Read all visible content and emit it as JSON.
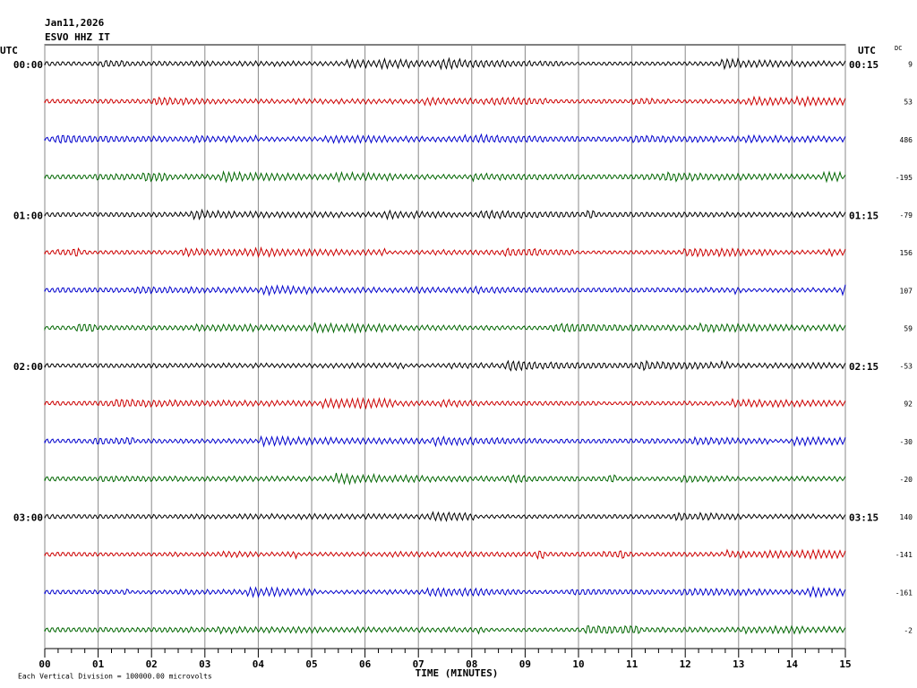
{
  "chart_data": {
    "type": "helicorder",
    "title": "Jan11,2026",
    "subtitle": "ESVO HHZ IT",
    "left_axis_label": "UTC",
    "right_axis_label": "UTC",
    "dc_label": "DC",
    "xlabel": "TIME (MINUTES)",
    "footer": "Each Vertical Division = 100000.00 microvolts",
    "colors": [
      "#000000",
      "#cc0000",
      "#0000cc",
      "#006600"
    ],
    "left_labels": [
      "00:00",
      "01:00",
      "02:00",
      "03:00"
    ],
    "right_labels": [
      "00:15",
      "01:15",
      "02:15",
      "03:15"
    ],
    "dc": [
      9,
      53,
      486,
      -195,
      -79,
      156,
      107,
      59,
      -53,
      92,
      -30,
      -20,
      140,
      -141,
      -161,
      -2
    ],
    "xlim": [
      0,
      15
    ],
    "xticks": [
      {
        "value": 0,
        "label": "00"
      },
      {
        "value": 1,
        "label": "01"
      },
      {
        "value": 2,
        "label": "02"
      },
      {
        "value": 3,
        "label": "03"
      },
      {
        "value": 4,
        "label": "04"
      },
      {
        "value": 5,
        "label": "05"
      },
      {
        "value": 6,
        "label": "06"
      },
      {
        "value": 7,
        "label": "07"
      },
      {
        "value": 8,
        "label": "08"
      },
      {
        "value": 9,
        "label": "09"
      },
      {
        "value": 10,
        "label": "10"
      },
      {
        "value": 11,
        "label": "11"
      },
      {
        "value": 12,
        "label": "12"
      },
      {
        "value": 13,
        "label": "13"
      },
      {
        "value": 14,
        "label": "14"
      },
      {
        "value": 15,
        "label": "15"
      }
    ],
    "grid": true
  }
}
